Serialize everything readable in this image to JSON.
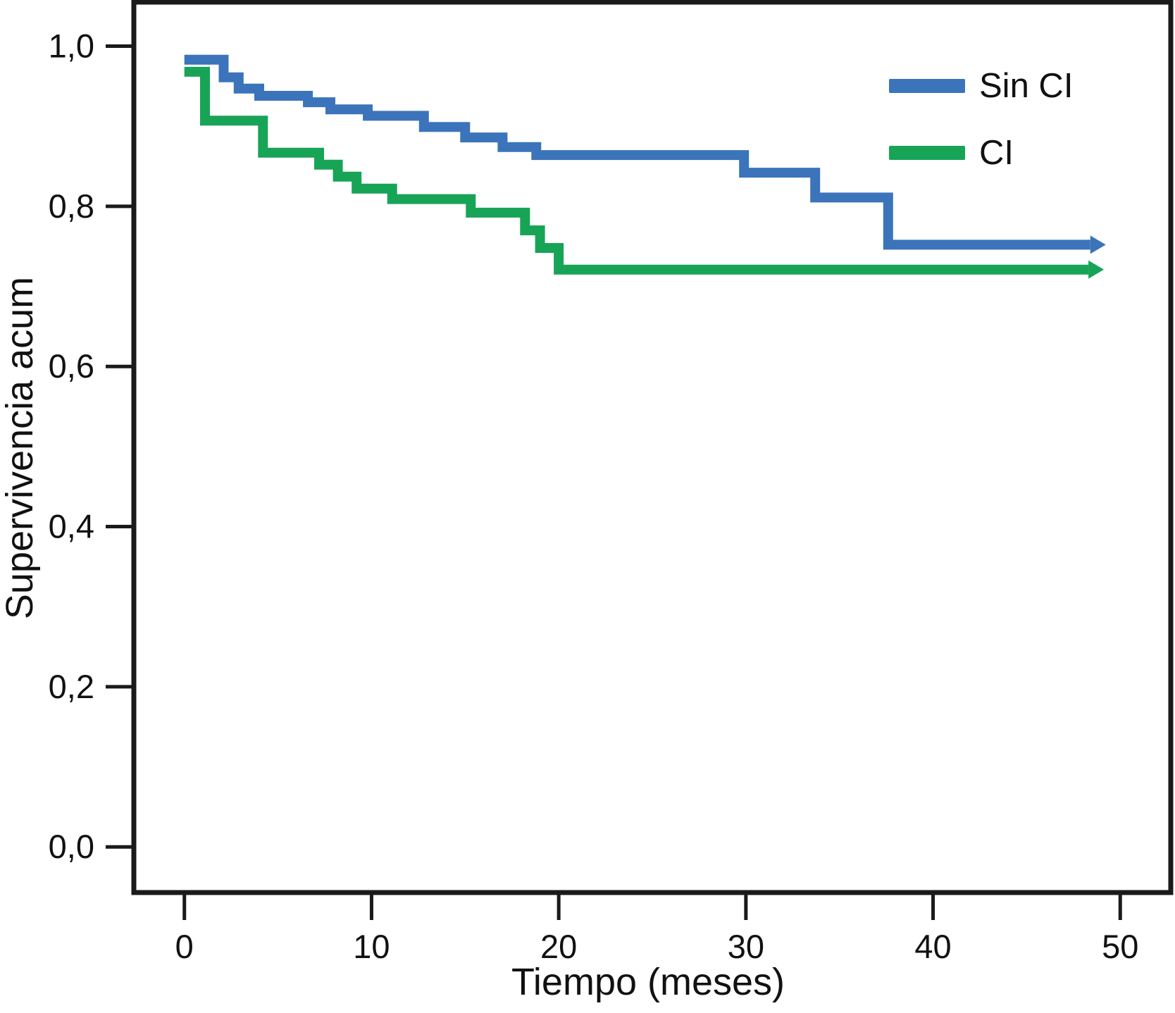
{
  "figure": {
    "background": "#ffffff",
    "axis_color": "#1a1a1a"
  },
  "chart_data": {
    "type": "line",
    "subtype": "kaplan-meier-step",
    "title": "",
    "xlabel": "Tiempo (meses)",
    "ylabel": "Supervivencia acum",
    "grid": false,
    "legend_position": "top-right-inside",
    "xlim": [
      -2.7,
      52.7
    ],
    "ylim": [
      -0.057,
      1.055
    ],
    "x_ticks": [
      {
        "label": "0",
        "value": 0
      },
      {
        "label": "10",
        "value": 10
      },
      {
        "label": "20",
        "value": 20
      },
      {
        "label": "30",
        "value": 30
      },
      {
        "label": "40",
        "value": 40
      },
      {
        "label": "50",
        "value": 50
      }
    ],
    "y_ticks": [
      {
        "label": "1,0",
        "value": 1.0
      },
      {
        "label": "0,8",
        "value": 0.8
      },
      {
        "label": "0,6",
        "value": 0.6
      },
      {
        "label": "0,4",
        "value": 0.4
      },
      {
        "label": "0,2",
        "value": 0.2
      },
      {
        "label": "0,0",
        "value": 0.0
      }
    ],
    "series": [
      {
        "name": "Sin CI",
        "color": "#3b74ba",
        "steps": [
          [
            0,
            0.983
          ],
          [
            2.1,
            0.961
          ],
          [
            2.9,
            0.947
          ],
          [
            4.0,
            0.938
          ],
          [
            6.6,
            0.93
          ],
          [
            7.8,
            0.921
          ],
          [
            9.8,
            0.913
          ],
          [
            12.8,
            0.899
          ],
          [
            15.0,
            0.886
          ],
          [
            17.0,
            0.874
          ],
          [
            18.8,
            0.864
          ],
          [
            29.9,
            0.842
          ],
          [
            33.7,
            0.811
          ],
          [
            37.6,
            0.752
          ]
        ],
        "end_time": 48.4,
        "arrow_end": true
      },
      {
        "name": "CI",
        "color": "#17a457",
        "steps": [
          [
            0,
            0.968
          ],
          [
            1.1,
            0.907
          ],
          [
            4.2,
            0.867
          ],
          [
            7.2,
            0.852
          ],
          [
            8.2,
            0.837
          ],
          [
            9.2,
            0.822
          ],
          [
            11.1,
            0.809
          ],
          [
            15.3,
            0.792
          ],
          [
            18.2,
            0.77
          ],
          [
            19.0,
            0.748
          ],
          [
            20.0,
            0.721
          ]
        ],
        "end_time": 48.3,
        "arrow_end": true
      }
    ]
  }
}
